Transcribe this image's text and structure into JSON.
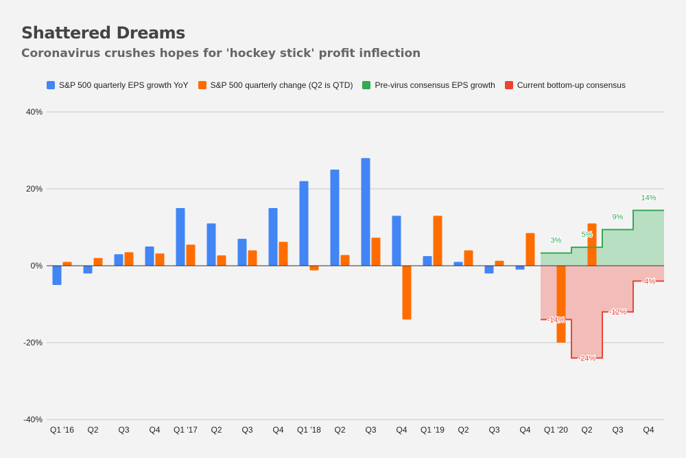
{
  "title": "Shattered Dreams",
  "subtitle": "Coronavirus crushes hopes for 'hockey stick' profit inflection",
  "colors": {
    "blue": "#4285f4",
    "orange": "#ff6d00",
    "green": "#34a853",
    "red": "#ea4335",
    "green_fill": "#b9dfc3",
    "red_fill": "#f2bdb8",
    "grid": "#c8c8c8",
    "background": "#f3f3f3"
  },
  "chart_data": {
    "type": "bar",
    "title": "Shattered Dreams",
    "subtitle": "Coronavirus crushes hopes for 'hockey stick' profit inflection",
    "xlabel": "",
    "ylabel": "",
    "ylim": [
      -40,
      40
    ],
    "yticks": [
      40,
      20,
      0,
      -20,
      -40
    ],
    "ytick_labels": [
      "40%",
      "20%",
      "0%",
      "-20%",
      "-40%"
    ],
    "grid": true,
    "legend_position": "top",
    "categories": [
      "Q1 '16",
      "Q2",
      "Q3",
      "Q4",
      "Q1 '17",
      "Q2",
      "Q3",
      "Q4",
      "Q1 '18",
      "Q2",
      "Q3",
      "Q4",
      "Q1 '19",
      "Q2",
      "Q3",
      "Q4",
      "Q1 '20",
      "Q2",
      "Q3",
      "Q4"
    ],
    "series": [
      {
        "name": "S&P 500 quarterly EPS growth YoY",
        "type": "bar",
        "color": "#4285f4",
        "values": [
          -5,
          -2,
          3,
          5,
          15,
          11,
          7,
          15,
          22,
          25,
          28,
          13,
          2.5,
          1,
          -2,
          -1,
          null,
          null,
          null,
          null
        ]
      },
      {
        "name": "S&P 500 quarterly change (Q2 is QTD)",
        "type": "bar",
        "color": "#ff6d00",
        "values": [
          1,
          2,
          3.5,
          3.2,
          5.5,
          2.7,
          4,
          6.2,
          -1.2,
          2.8,
          7.3,
          -14,
          13,
          4,
          1.3,
          8.5,
          -20,
          11,
          null,
          null
        ]
      },
      {
        "name": "Pre-virus consensus EPS growth",
        "type": "stepped-area",
        "color": "#34a853",
        "values": [
          null,
          null,
          null,
          null,
          null,
          null,
          null,
          null,
          null,
          null,
          null,
          null,
          null,
          null,
          null,
          null,
          3.3,
          4.8,
          9.4,
          14.4
        ],
        "labels": [
          "3%",
          "5%",
          "9%",
          "14%"
        ]
      },
      {
        "name": "Current bottom-up consensus",
        "type": "stepped-area",
        "color": "#ea4335",
        "values": [
          null,
          null,
          null,
          null,
          null,
          null,
          null,
          null,
          null,
          null,
          null,
          null,
          null,
          null,
          null,
          null,
          -14,
          -24,
          -12,
          -4
        ],
        "labels": [
          "-14%",
          "-24%",
          "-12%",
          "-4%"
        ]
      }
    ]
  }
}
